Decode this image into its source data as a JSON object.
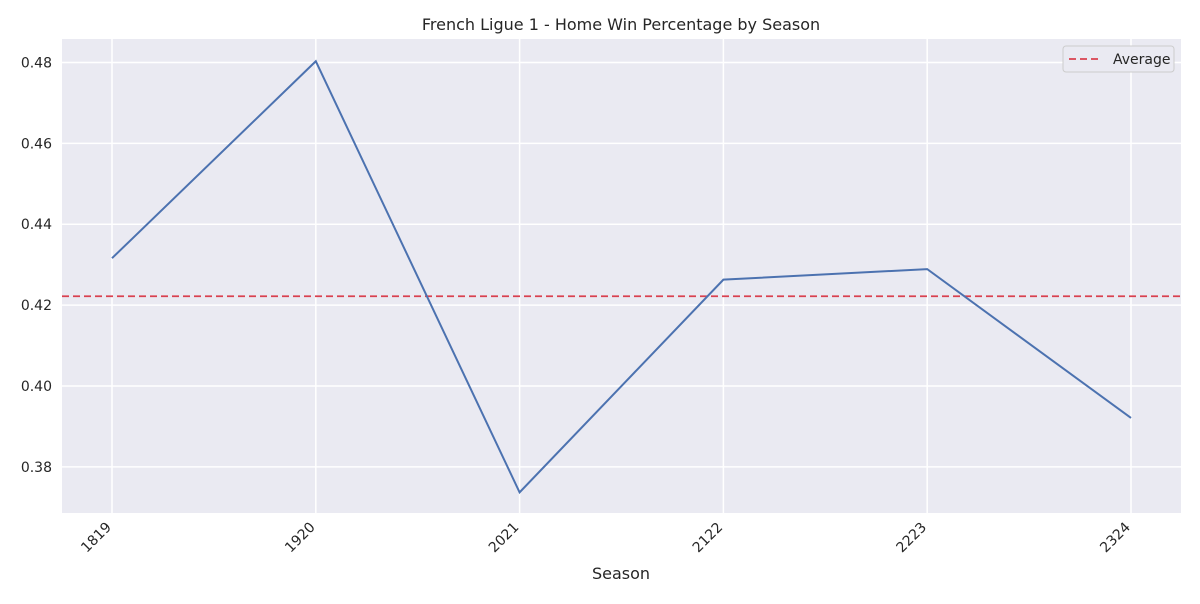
{
  "chart_data": {
    "type": "line",
    "title": "French Ligue 1 - Home Win Percentage by Season",
    "xlabel": "Season",
    "ylabel": "",
    "categories": [
      "1819",
      "1920",
      "2021",
      "2122",
      "2223",
      "2324"
    ],
    "series": [
      {
        "values": [
          0.4316,
          0.4803,
          0.3737,
          0.4263,
          0.4289,
          0.3921
        ],
        "color": "#4c72b0"
      }
    ],
    "reference_lines": [
      {
        "name": "Average",
        "value": 0.4222,
        "color": "#d9414f",
        "style": "dashed"
      }
    ],
    "ylim": [
      0.3686,
      0.4858
    ],
    "yticks": [
      "0.38",
      "0.40",
      "0.42",
      "0.44",
      "0.46",
      "0.48"
    ],
    "grid": true,
    "legend_position": "top-right",
    "background_color": "#eaeaf2",
    "grid_color": "#ffffff"
  }
}
